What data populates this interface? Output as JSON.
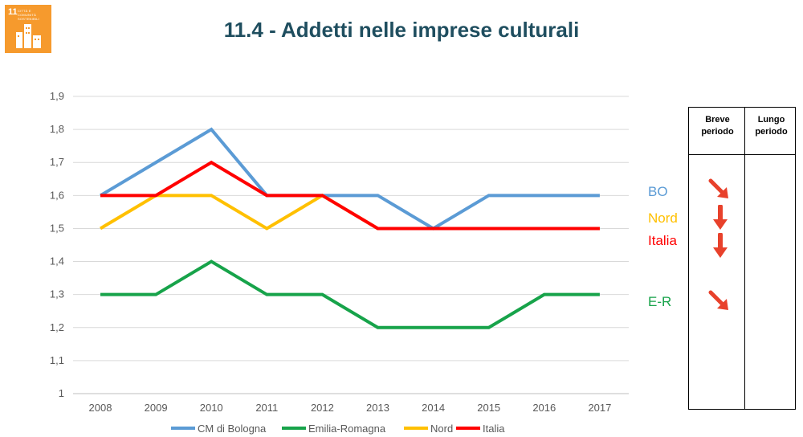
{
  "page": {
    "title": "11.4 - Addetti nelle imprese culturali"
  },
  "logo": {
    "number": "11",
    "caption": "CITTÀ E COMUNITÀ SOSTENIBILI",
    "color": "#f69a2d"
  },
  "chart_data": {
    "type": "line",
    "x": [
      "2008",
      "2009",
      "2010",
      "2011",
      "2012",
      "2013",
      "2014",
      "2015",
      "2016",
      "2017"
    ],
    "ylim": [
      1,
      1.9
    ],
    "yticks": [
      "1",
      "1,1",
      "1,2",
      "1,3",
      "1,4",
      "1,5",
      "1,6",
      "1,7",
      "1,8",
      "1,9"
    ],
    "grid": true,
    "legend_position": "bottom",
    "series": [
      {
        "name": "CM di Bologna",
        "color": "#5b9bd5",
        "values": [
          1.6,
          1.7,
          1.8,
          1.6,
          1.6,
          1.6,
          1.5,
          1.6,
          1.6,
          1.6
        ]
      },
      {
        "name": "Emilia-Romagna",
        "color": "#17a34a",
        "values": [
          1.3,
          1.3,
          1.4,
          1.3,
          1.3,
          1.2,
          1.2,
          1.2,
          1.3,
          1.3
        ]
      },
      {
        "name": "Nord",
        "color": "#ffc000",
        "values": [
          1.5,
          1.6,
          1.6,
          1.5,
          1.6,
          1.5,
          1.5,
          1.5,
          1.5,
          1.5
        ]
      },
      {
        "name": "Italia",
        "color": "#ff0000",
        "values": [
          1.6,
          1.6,
          1.7,
          1.6,
          1.6,
          1.5,
          1.5,
          1.5,
          1.5,
          1.5
        ]
      }
    ]
  },
  "trend_table": {
    "headers": [
      "Breve periodo",
      "Lungo periodo"
    ],
    "rows": [
      {
        "label": "BO",
        "color": "#5b9bd5",
        "short_term": "down-right"
      },
      {
        "label": "Nord",
        "color": "#ffc000",
        "short_term": "down"
      },
      {
        "label": "Italia",
        "color": "#ff0000",
        "short_term": "down"
      },
      {
        "label": "E-R",
        "color": "#17a34a",
        "short_term": "down-right"
      }
    ],
    "arrow_color": "#e8412b"
  }
}
